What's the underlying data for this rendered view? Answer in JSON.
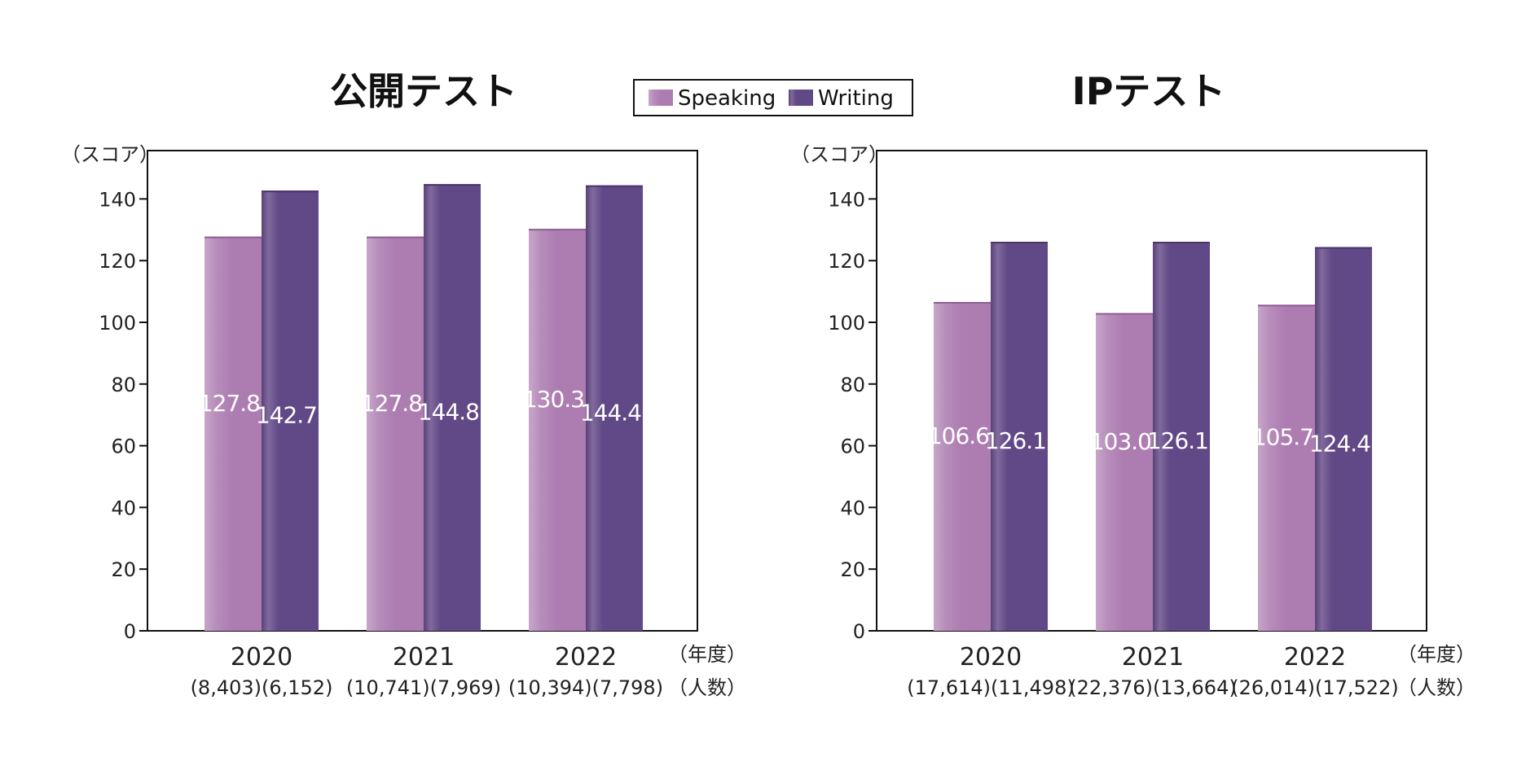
{
  "legend": [
    {
      "label": "Speaking",
      "color": "#ad7cb1"
    },
    {
      "label": "Writing",
      "color": "#614886"
    }
  ],
  "chart_data": [
    {
      "type": "bar",
      "title": "公開テスト",
      "ylabel": "（スコア）",
      "x_unit": "（年度）",
      "count_unit": "（人数）",
      "ylim": [
        0,
        155
      ],
      "yticks": [
        0,
        20,
        40,
        60,
        80,
        100,
        120,
        140
      ],
      "categories": [
        "2020",
        "2021",
        "2022"
      ],
      "counts": [
        "(8,403)(6,152)",
        "(10,741)(7,969)",
        "(10,394)(7,798)"
      ],
      "series": [
        {
          "name": "Speaking",
          "values": [
            127.8,
            127.8,
            130.3
          ],
          "labels": [
            "127.8",
            "127.8",
            "130.3"
          ]
        },
        {
          "name": "Writing",
          "values": [
            142.7,
            144.8,
            144.4
          ],
          "labels": [
            "142.7",
            "144.8",
            "144.4"
          ]
        }
      ]
    },
    {
      "type": "bar",
      "title": "IPテスト",
      "ylabel": "（スコア）",
      "x_unit": "（年度）",
      "count_unit": "（人数）",
      "ylim": [
        0,
        155
      ],
      "yticks": [
        0,
        20,
        40,
        60,
        80,
        100,
        120,
        140
      ],
      "categories": [
        "2020",
        "2021",
        "2022"
      ],
      "counts": [
        "(17,614)(11,498)",
        "(22,376)(13,664)",
        "(26,014)(17,522)"
      ],
      "series": [
        {
          "name": "Speaking",
          "values": [
            106.6,
            103.0,
            105.7
          ],
          "labels": [
            "106.6",
            "103.0",
            "105.7"
          ]
        },
        {
          "name": "Writing",
          "values": [
            126.1,
            126.1,
            124.4
          ],
          "labels": [
            "126.1",
            "126.1",
            "124.4"
          ]
        }
      ]
    }
  ]
}
